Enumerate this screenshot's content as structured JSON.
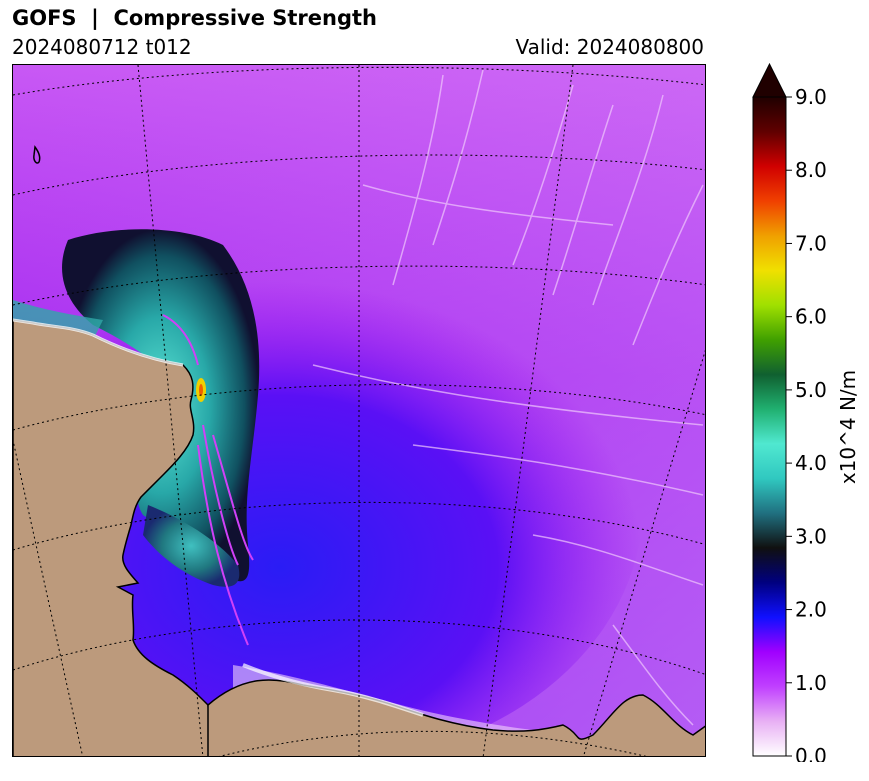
{
  "header": {
    "title": "GOFS  |  Compressive Strength",
    "run": "2024080712 t012",
    "valid": "Valid: 2024080800"
  },
  "colorbar": {
    "label": "x10^4 N/m",
    "ticks": [
      "0.0",
      "1.0",
      "2.0",
      "3.0",
      "4.0",
      "5.0",
      "6.0",
      "7.0",
      "8.0",
      "9.0"
    ],
    "min": 0.0,
    "max": 9.0,
    "extend": "max",
    "colors": [
      "#ffffff",
      "#e8b0f4",
      "#c040ff",
      "#a000ff",
      "#1010ff",
      "#000080",
      "#101010",
      "#207080",
      "#30c8c0",
      "#50e8d0",
      "#20b070",
      "#106030",
      "#40a000",
      "#a0e000",
      "#f0e000",
      "#f0a000",
      "#f04000",
      "#d00000",
      "#600000",
      "#200000"
    ]
  },
  "map": {
    "land_color": "#bc9a7c",
    "ice_base_color": "#a010f0",
    "coastline_color": "#000000",
    "gridline_color": "#000000"
  }
}
